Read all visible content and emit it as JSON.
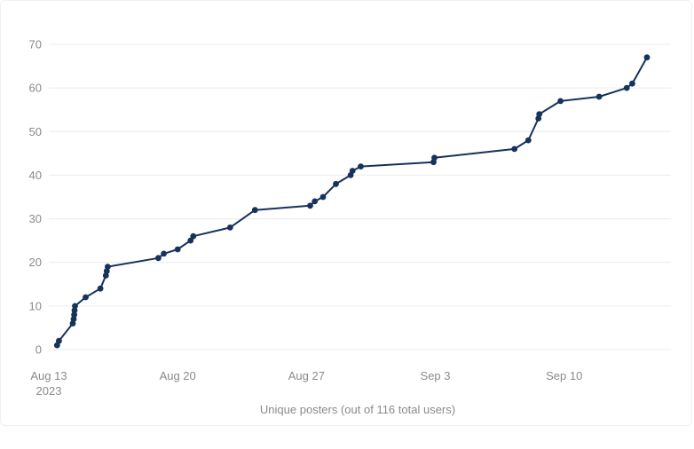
{
  "chart_data": {
    "type": "line",
    "title": "",
    "xlabel": "Unique posters (out of 116 total users)",
    "ylabel": "",
    "x_unit": "days since Aug 13 2023",
    "xlim": [
      0,
      33.8
    ],
    "ylim": [
      0,
      70
    ],
    "grid": true,
    "color": "#17325c",
    "y_ticks": [
      0,
      10,
      20,
      30,
      40,
      50,
      60,
      70
    ],
    "x_ticks": [
      {
        "x": 0,
        "label": "Aug 13",
        "sublabel": "2023"
      },
      {
        "x": 7,
        "label": "Aug 20",
        "sublabel": ""
      },
      {
        "x": 14,
        "label": "Aug 27",
        "sublabel": ""
      },
      {
        "x": 21,
        "label": "Sep 3",
        "sublabel": ""
      },
      {
        "x": 28,
        "label": "Sep 10",
        "sublabel": ""
      }
    ],
    "series": [
      {
        "name": "",
        "points": [
          [
            0.45,
            1
          ],
          [
            0.55,
            2
          ],
          [
            1.3,
            6
          ],
          [
            1.35,
            7
          ],
          [
            1.38,
            8
          ],
          [
            1.4,
            9
          ],
          [
            1.42,
            10
          ],
          [
            2.0,
            12
          ],
          [
            2.8,
            14
          ],
          [
            3.1,
            17
          ],
          [
            3.15,
            18
          ],
          [
            3.2,
            19
          ],
          [
            5.95,
            21
          ],
          [
            6.25,
            22
          ],
          [
            7.0,
            23
          ],
          [
            7.7,
            25
          ],
          [
            7.85,
            26
          ],
          [
            9.85,
            28
          ],
          [
            11.2,
            32
          ],
          [
            14.2,
            33
          ],
          [
            14.45,
            34
          ],
          [
            14.9,
            35
          ],
          [
            15.6,
            38
          ],
          [
            16.4,
            40
          ],
          [
            16.5,
            41
          ],
          [
            16.95,
            42
          ],
          [
            20.9,
            43
          ],
          [
            20.95,
            44
          ],
          [
            25.3,
            46
          ],
          [
            26.05,
            48
          ],
          [
            26.6,
            53
          ],
          [
            26.65,
            54
          ],
          [
            27.8,
            57
          ],
          [
            29.9,
            58
          ],
          [
            31.4,
            60
          ],
          [
            31.7,
            61
          ],
          [
            32.5,
            67
          ]
        ]
      }
    ]
  }
}
